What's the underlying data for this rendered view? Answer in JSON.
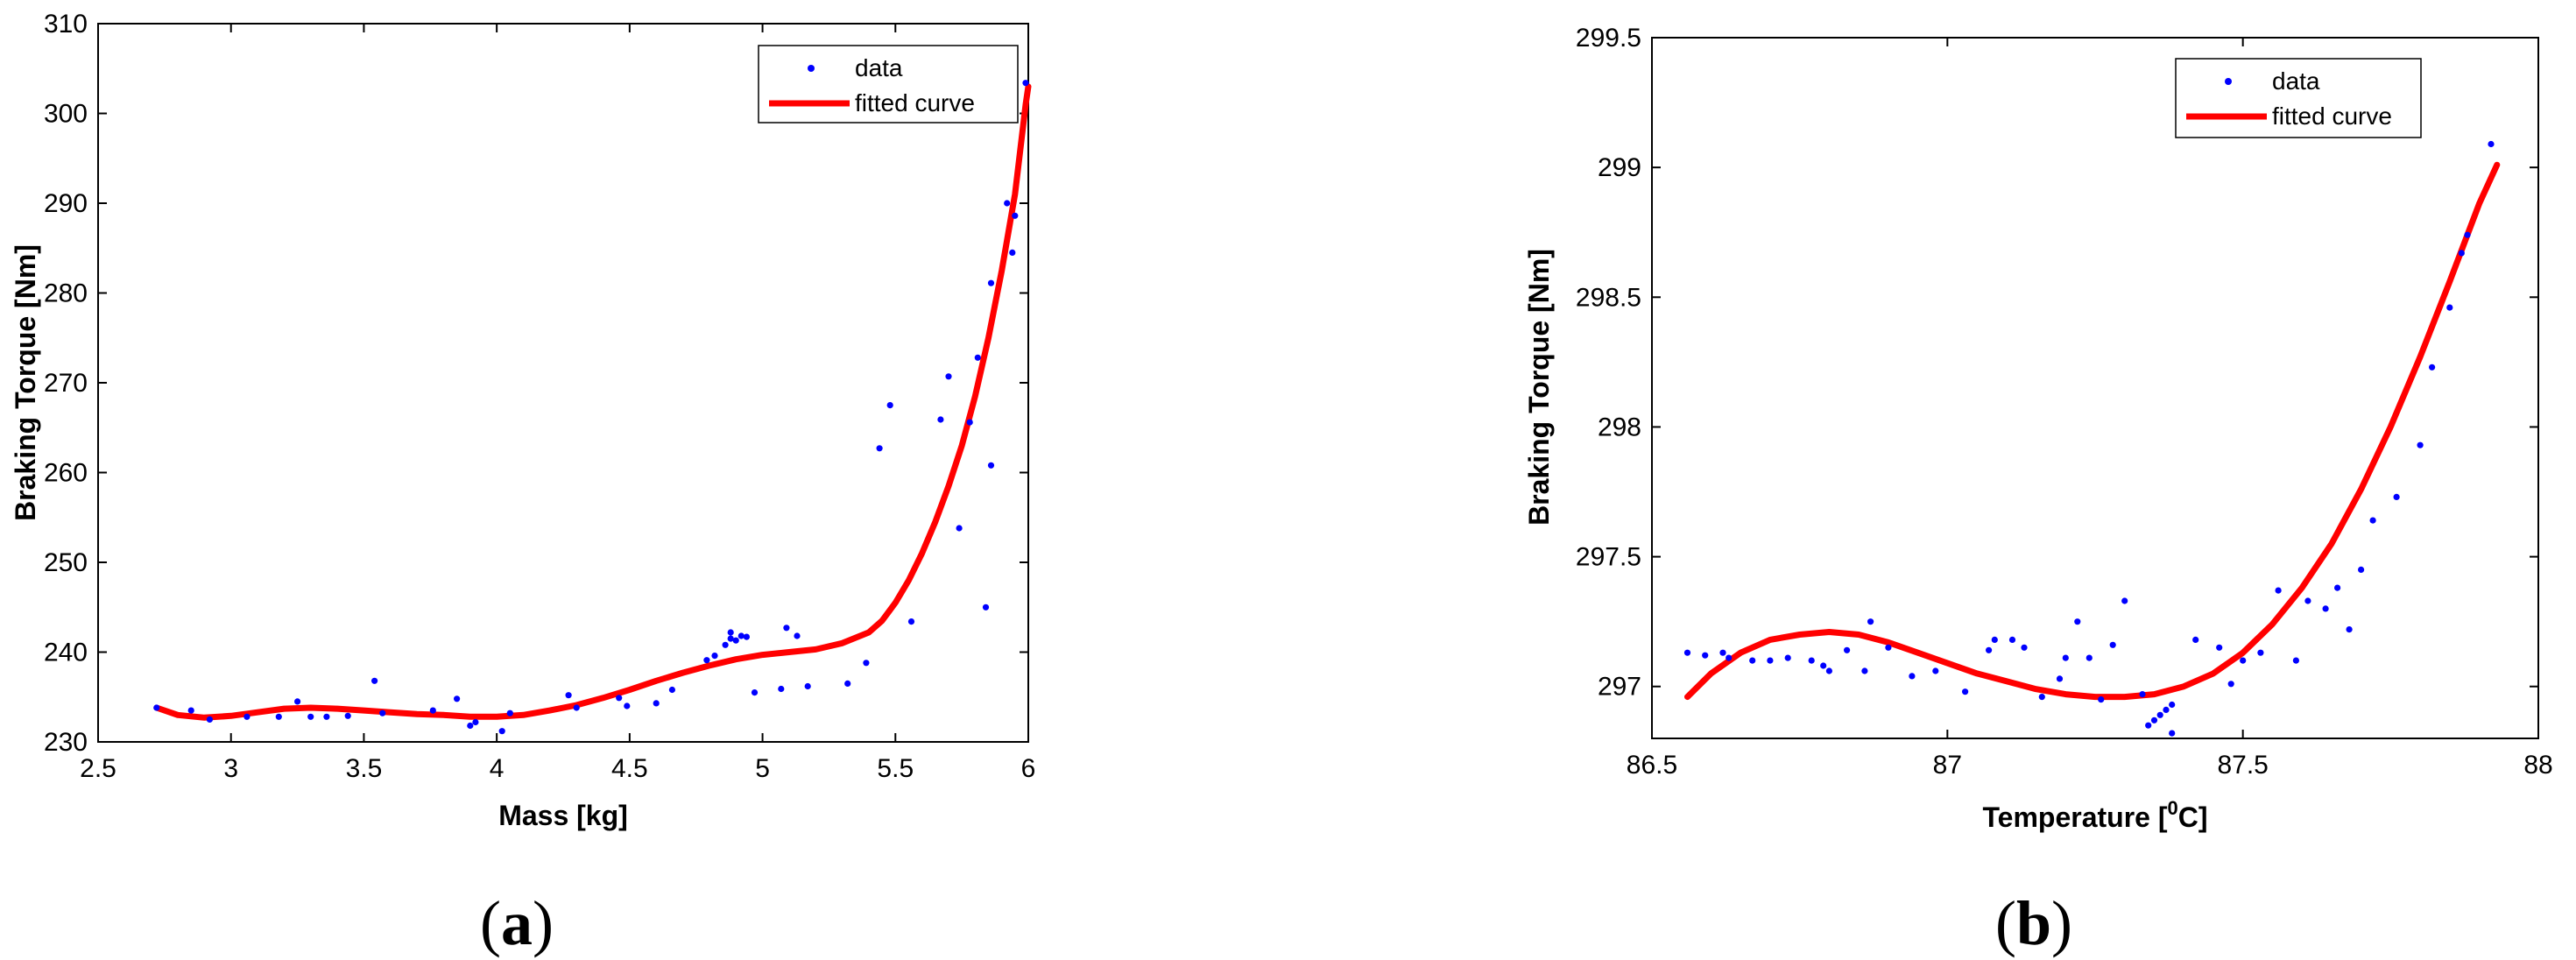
{
  "colors": {
    "data_points": "#0000ff",
    "fitted_curve": "#ff0000",
    "axes": "#000000"
  },
  "chart_data": [
    {
      "id": "a",
      "type": "scatter",
      "panel_label": "a",
      "xlabel": "Mass [kg]",
      "ylabel": "Braking Torque [Nm]",
      "xlim": [
        2.5,
        6
      ],
      "ylim": [
        230,
        310
      ],
      "xticks": [
        2.5,
        3,
        3.5,
        4,
        4.5,
        5,
        5.5,
        6
      ],
      "yticks": [
        230,
        240,
        250,
        260,
        270,
        280,
        290,
        300,
        310
      ],
      "grid": false,
      "legend": {
        "placement": "top-right",
        "entries": [
          "data",
          "fitted curve"
        ]
      },
      "series": [
        {
          "name": "data",
          "type": "scatter",
          "points": [
            [
              2.72,
              233.8
            ],
            [
              2.85,
              233.5
            ],
            [
              2.92,
              232.5
            ],
            [
              3.06,
              232.8
            ],
            [
              3.18,
              232.8
            ],
            [
              3.25,
              234.5
            ],
            [
              3.3,
              232.8
            ],
            [
              3.36,
              232.8
            ],
            [
              3.44,
              232.9
            ],
            [
              3.54,
              236.8
            ],
            [
              3.57,
              233.2
            ],
            [
              3.76,
              233.5
            ],
            [
              3.85,
              234.8
            ],
            [
              3.9,
              231.8
            ],
            [
              3.92,
              232.2
            ],
            [
              4.02,
              231.2
            ],
            [
              4.05,
              233.2
            ],
            [
              4.27,
              235.2
            ],
            [
              4.3,
              233.8
            ],
            [
              4.46,
              234.9
            ],
            [
              4.49,
              234.0
            ],
            [
              4.6,
              234.3
            ],
            [
              4.66,
              235.8
            ],
            [
              4.79,
              239.1
            ],
            [
              4.82,
              239.6
            ],
            [
              4.86,
              240.8
            ],
            [
              4.88,
              241.5
            ],
            [
              4.88,
              242.2
            ],
            [
              4.9,
              241.3
            ],
            [
              4.92,
              241.8
            ],
            [
              4.94,
              241.7
            ],
            [
              4.97,
              235.5
            ],
            [
              5.07,
              235.9
            ],
            [
              5.09,
              242.7
            ],
            [
              5.13,
              241.8
            ],
            [
              5.17,
              236.2
            ],
            [
              5.32,
              236.5
            ],
            [
              5.39,
              238.8
            ],
            [
              5.44,
              262.7
            ],
            [
              5.48,
              267.5
            ],
            [
              5.56,
              243.4
            ],
            [
              5.67,
              265.9
            ],
            [
              5.7,
              270.7
            ],
            [
              5.74,
              253.8
            ],
            [
              5.78,
              265.6
            ],
            [
              5.81,
              272.8
            ],
            [
              5.84,
              245.0
            ],
            [
              5.86,
              260.8
            ],
            [
              5.86,
              281.1
            ],
            [
              5.92,
              290.0
            ],
            [
              5.94,
              284.5
            ],
            [
              5.95,
              288.6
            ],
            [
              5.99,
              303.4
            ]
          ]
        },
        {
          "name": "fitted curve",
          "type": "line",
          "points": [
            [
              2.72,
              233.8
            ],
            [
              2.8,
              233.0
            ],
            [
              2.9,
              232.7
            ],
            [
              3.0,
              232.9
            ],
            [
              3.1,
              233.3
            ],
            [
              3.2,
              233.7
            ],
            [
              3.3,
              233.8
            ],
            [
              3.4,
              233.7
            ],
            [
              3.5,
              233.5
            ],
            [
              3.6,
              233.3
            ],
            [
              3.7,
              233.1
            ],
            [
              3.8,
              233.0
            ],
            [
              3.9,
              232.8
            ],
            [
              4.0,
              232.8
            ],
            [
              4.1,
              233.0
            ],
            [
              4.2,
              233.5
            ],
            [
              4.3,
              234.1
            ],
            [
              4.4,
              234.9
            ],
            [
              4.5,
              235.8
            ],
            [
              4.6,
              236.8
            ],
            [
              4.7,
              237.7
            ],
            [
              4.8,
              238.5
            ],
            [
              4.9,
              239.2
            ],
            [
              5.0,
              239.7
            ],
            [
              5.1,
              240.0
            ],
            [
              5.2,
              240.3
            ],
            [
              5.3,
              241.0
            ],
            [
              5.4,
              242.2
            ],
            [
              5.45,
              243.5
            ],
            [
              5.5,
              245.5
            ],
            [
              5.55,
              248.0
            ],
            [
              5.6,
              251.0
            ],
            [
              5.65,
              254.5
            ],
            [
              5.7,
              258.5
            ],
            [
              5.75,
              263.0
            ],
            [
              5.8,
              268.5
            ],
            [
              5.85,
              275.0
            ],
            [
              5.9,
              282.5
            ],
            [
              5.95,
              291.0
            ],
            [
              5.99,
              301.0
            ],
            [
              6.0,
              303.0
            ]
          ]
        }
      ]
    },
    {
      "id": "b",
      "type": "scatter",
      "panel_label": "b",
      "xlabel": "Temperature [",
      "xlabel_sup": "0",
      "xlabel_suffix": "C]",
      "ylabel": "Braking Torque [Nm]",
      "xlim": [
        86.5,
        88
      ],
      "ylim": [
        296.8,
        299.5
      ],
      "xticks": [
        86.5,
        87,
        87.5,
        88
      ],
      "yticks": [
        297,
        297.5,
        298,
        298.5,
        299,
        299.5
      ],
      "grid": false,
      "legend": {
        "placement": "top-right",
        "entries": [
          "data",
          "fitted curve"
        ]
      },
      "series": [
        {
          "name": "data",
          "type": "scatter",
          "points": [
            [
              86.56,
              297.13
            ],
            [
              86.59,
              297.12
            ],
            [
              86.62,
              297.13
            ],
            [
              86.63,
              297.11
            ],
            [
              86.67,
              297.1
            ],
            [
              86.7,
              297.1
            ],
            [
              86.73,
              297.11
            ],
            [
              86.77,
              297.1
            ],
            [
              86.79,
              297.08
            ],
            [
              86.8,
              297.06
            ],
            [
              86.83,
              297.14
            ],
            [
              86.86,
              297.06
            ],
            [
              86.87,
              297.25
            ],
            [
              86.9,
              297.15
            ],
            [
              86.94,
              297.04
            ],
            [
              86.98,
              297.06
            ],
            [
              87.03,
              296.98
            ],
            [
              87.07,
              297.14
            ],
            [
              87.08,
              297.18
            ],
            [
              87.11,
              297.18
            ],
            [
              87.13,
              297.15
            ],
            [
              87.16,
              296.96
            ],
            [
              87.19,
              297.03
            ],
            [
              87.2,
              297.11
            ],
            [
              87.22,
              297.25
            ],
            [
              87.24,
              297.11
            ],
            [
              87.26,
              296.95
            ],
            [
              87.28,
              297.16
            ],
            [
              87.3,
              297.33
            ],
            [
              87.33,
              296.97
            ],
            [
              87.34,
              296.85
            ],
            [
              87.35,
              296.87
            ],
            [
              87.36,
              296.89
            ],
            [
              87.37,
              296.91
            ],
            [
              87.38,
              296.82
            ],
            [
              87.38,
              296.93
            ],
            [
              87.42,
              297.18
            ],
            [
              87.46,
              297.15
            ],
            [
              87.48,
              297.01
            ],
            [
              87.5,
              297.1
            ],
            [
              87.53,
              297.13
            ],
            [
              87.56,
              297.37
            ],
            [
              87.59,
              297.1
            ],
            [
              87.61,
              297.33
            ],
            [
              87.64,
              297.3
            ],
            [
              87.66,
              297.38
            ],
            [
              87.68,
              297.22
            ],
            [
              87.7,
              297.45
            ],
            [
              87.72,
              297.64
            ],
            [
              87.76,
              297.73
            ],
            [
              87.8,
              297.93
            ],
            [
              87.82,
              298.23
            ],
            [
              87.85,
              298.46
            ],
            [
              87.87,
              298.67
            ],
            [
              87.88,
              298.74
            ],
            [
              87.92,
              299.09
            ]
          ]
        },
        {
          "name": "fitted curve",
          "type": "line",
          "points": [
            [
              86.56,
              296.96
            ],
            [
              86.6,
              297.05
            ],
            [
              86.65,
              297.13
            ],
            [
              86.7,
              297.18
            ],
            [
              86.75,
              297.2
            ],
            [
              86.8,
              297.21
            ],
            [
              86.85,
              297.2
            ],
            [
              86.9,
              297.17
            ],
            [
              86.95,
              297.13
            ],
            [
              87.0,
              297.09
            ],
            [
              87.05,
              297.05
            ],
            [
              87.1,
              297.02
            ],
            [
              87.15,
              296.99
            ],
            [
              87.2,
              296.97
            ],
            [
              87.25,
              296.96
            ],
            [
              87.3,
              296.96
            ],
            [
              87.35,
              296.97
            ],
            [
              87.4,
              297.0
            ],
            [
              87.45,
              297.05
            ],
            [
              87.5,
              297.13
            ],
            [
              87.55,
              297.24
            ],
            [
              87.6,
              297.38
            ],
            [
              87.65,
              297.55
            ],
            [
              87.7,
              297.76
            ],
            [
              87.75,
              298.0
            ],
            [
              87.8,
              298.27
            ],
            [
              87.85,
              298.56
            ],
            [
              87.9,
              298.86
            ],
            [
              87.93,
              299.01
            ]
          ]
        }
      ]
    }
  ]
}
